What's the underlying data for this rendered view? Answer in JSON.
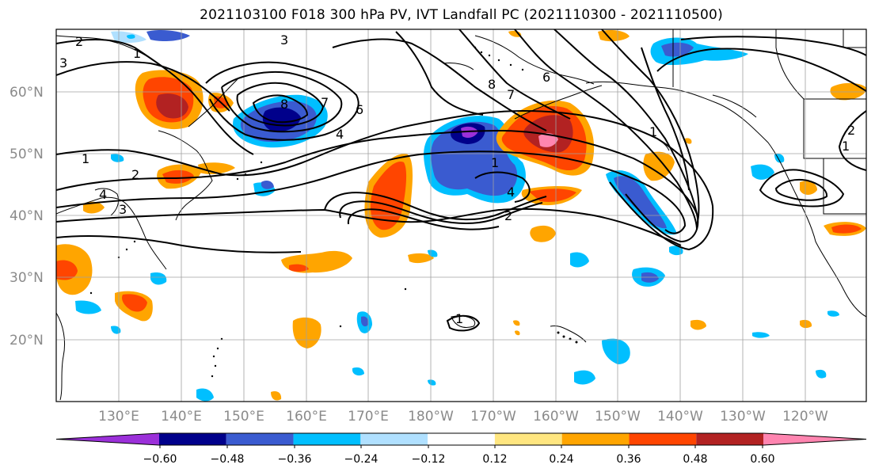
{
  "title": "2021103100 F018 300 hPa PV, IVT Landfall PC (2021110300 - 2021110500)",
  "latitude_labels": [
    "60°N",
    "50°N",
    "40°N",
    "30°N",
    "20°N"
  ],
  "longitude_labels": [
    "130°E",
    "140°E",
    "150°E",
    "160°E",
    "170°E",
    "180°W",
    "170°W",
    "160°W",
    "150°W",
    "140°W",
    "130°W",
    "120°W"
  ],
  "contour_labels": [
    "2",
    "1",
    "3",
    "8",
    "7",
    "6",
    "4",
    "1",
    "2",
    "3",
    "4",
    "3",
    "2",
    "1",
    "4",
    "6",
    "7",
    "8",
    "1",
    "1",
    "2",
    "1"
  ],
  "colorbar": {
    "colors": [
      "#9b30d9",
      "#00008b",
      "#3a5bd0",
      "#00bfff",
      "#b0e0ff",
      "#ffffff",
      "#ffe680",
      "#ffa500",
      "#ff4500",
      "#b22222",
      "#ff85b0"
    ],
    "tick_labels": [
      "−0.60",
      "−0.48",
      "−0.36",
      "−0.24",
      "−0.12",
      "0.12",
      "0.24",
      "0.36",
      "0.48",
      "0.60"
    ]
  },
  "colors": {
    "land": "#000000",
    "grid": "#a0a0a0",
    "contour": "#000000"
  }
}
